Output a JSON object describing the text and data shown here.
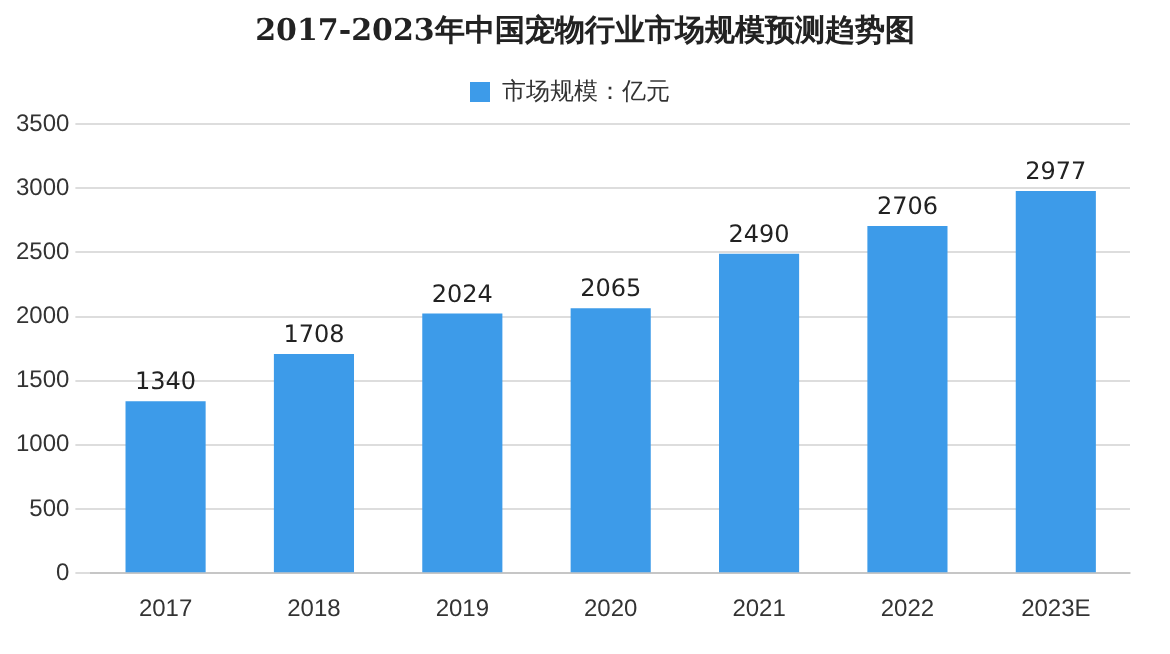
{
  "chart_data": {
    "type": "bar",
    "title": "2017-2023年中国宠物行业市场规模预测趋势图",
    "categories": [
      "2017",
      "2018",
      "2019",
      "2020",
      "2021",
      "2022",
      "2023E"
    ],
    "series": [
      {
        "name": "市场规模：亿元",
        "color": "#3d9be9",
        "values": [
          1340,
          1708,
          2024,
          2065,
          2490,
          2706,
          2977
        ]
      }
    ],
    "ylim": [
      0,
      3500
    ],
    "yticks": [
      0,
      500,
      1000,
      1500,
      2000,
      2500,
      3000,
      3500
    ],
    "grid": "y",
    "legend": "top",
    "data_labels": true
  }
}
